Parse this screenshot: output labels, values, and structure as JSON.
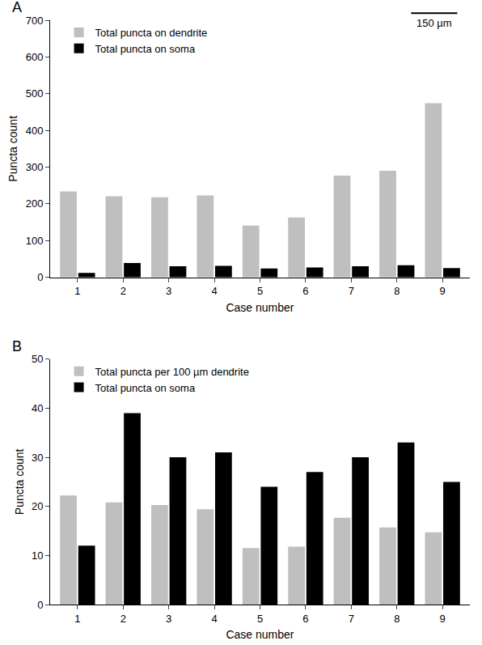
{
  "chart_data": [
    {
      "type": "bar",
      "title": "A",
      "categories": [
        "1",
        "2",
        "3",
        "4",
        "5",
        "6",
        "7",
        "8",
        "9"
      ],
      "series": [
        {
          "name": "Total puncta on dendrite",
          "color": "#bfbfbf",
          "values": [
            234,
            221,
            218,
            223,
            141,
            163,
            277,
            290,
            474
          ]
        },
        {
          "name": "Total puncta on soma",
          "color": "#000000",
          "values": [
            12,
            39,
            30,
            31,
            24,
            27,
            30,
            33,
            25
          ]
        }
      ],
      "x_label": "Case number",
      "y_label": "Puncta count",
      "ylim": [
        0,
        700
      ],
      "yticks": [
        0,
        100,
        200,
        300,
        400,
        500,
        600,
        700
      ],
      "grid": false,
      "legend": "upper left",
      "annotations": [
        "150 µm"
      ]
    },
    {
      "type": "bar",
      "title": "B",
      "categories": [
        "1",
        "2",
        "3",
        "4",
        "5",
        "6",
        "7",
        "8",
        "9"
      ],
      "series": [
        {
          "name": "Total puncta per 100 µm dendrite",
          "color": "#bfbfbf",
          "values": [
            22.2,
            20.8,
            20.3,
            19.4,
            11.5,
            11.8,
            17.7,
            15.7,
            14.7
          ]
        },
        {
          "name": "Total puncta on soma",
          "color": "#000000",
          "values": [
            12,
            39,
            30,
            31,
            24,
            27,
            30,
            33,
            25
          ]
        }
      ],
      "x_label": "Case number",
      "y_label": "Puncta count",
      "ylim": [
        0,
        50
      ],
      "yticks": [
        0,
        10,
        20,
        30,
        40,
        50
      ],
      "grid": false,
      "legend": "upper left"
    }
  ]
}
